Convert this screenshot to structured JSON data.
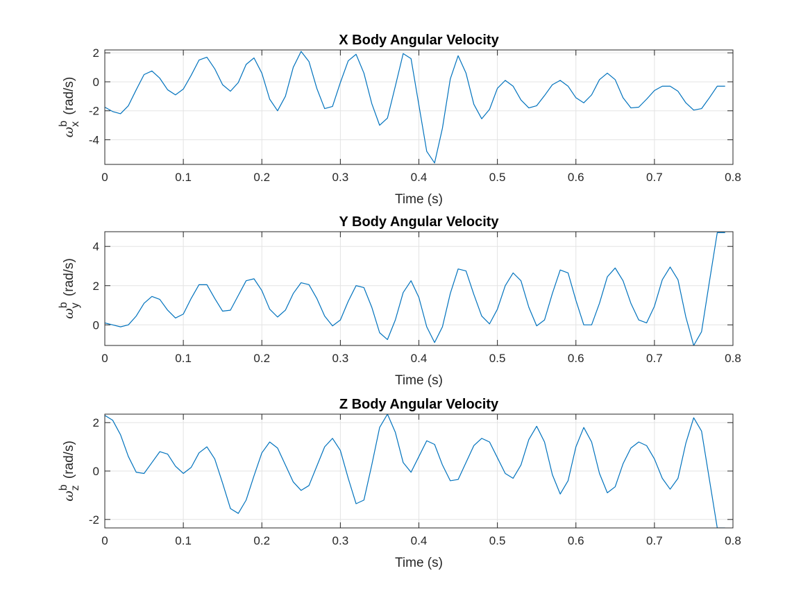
{
  "chart_data": [
    {
      "type": "line",
      "title": "X Body Angular Velocity",
      "xlabel": "Time (s)",
      "ylabel": {
        "symbol": "ω",
        "superscript": "b",
        "subscript": "x",
        "unit": "(rad/s)"
      },
      "xlim": [
        0,
        0.8
      ],
      "ylim": [
        -5.7,
        2.2
      ],
      "xticks": [
        0,
        0.1,
        0.2,
        0.3,
        0.4,
        0.5,
        0.6,
        0.7,
        0.8
      ],
      "xtick_labels": [
        "0",
        "0.1",
        "0.2",
        "0.3",
        "0.4",
        "0.5",
        "0.6",
        "0.7",
        "0.8"
      ],
      "yticks": [
        -4,
        -2,
        0,
        2
      ],
      "ytick_labels": [
        "-4",
        "-2",
        "0",
        "2"
      ],
      "grid": true,
      "color": "#0072bd",
      "series": [
        {
          "x": [
            0,
            0.01,
            0.02,
            0.03,
            0.04,
            0.05,
            0.06,
            0.07,
            0.08,
            0.09,
            0.1,
            0.11,
            0.12,
            0.13,
            0.14,
            0.15,
            0.16,
            0.17,
            0.18,
            0.19,
            0.2,
            0.21,
            0.22,
            0.23,
            0.24,
            0.25,
            0.26,
            0.27,
            0.28,
            0.29,
            0.3,
            0.31,
            0.32,
            0.33,
            0.34,
            0.35,
            0.36,
            0.37,
            0.38,
            0.39,
            0.4,
            0.41,
            0.42,
            0.43,
            0.44,
            0.45,
            0.46,
            0.47,
            0.48,
            0.49,
            0.5,
            0.51,
            0.52,
            0.53,
            0.54,
            0.55,
            0.56,
            0.57,
            0.58,
            0.59,
            0.6,
            0.61,
            0.62,
            0.63,
            0.64,
            0.65,
            0.66,
            0.67,
            0.68,
            0.69,
            0.7,
            0.71,
            0.72,
            0.73,
            0.74,
            0.75,
            0.76,
            0.77,
            0.78,
            0.79
          ],
          "y": [
            -1.75,
            -2.05,
            -2.2,
            -1.65,
            -0.55,
            0.5,
            0.75,
            0.25,
            -0.55,
            -0.9,
            -0.5,
            0.45,
            1.5,
            1.7,
            0.9,
            -0.2,
            -0.65,
            -0.05,
            1.2,
            1.65,
            0.6,
            -1.2,
            -2.0,
            -1.0,
            1.0,
            2.1,
            1.4,
            -0.45,
            -1.85,
            -1.7,
            -0.05,
            1.45,
            1.9,
            0.6,
            -1.5,
            -3.0,
            -2.5,
            -0.3,
            1.95,
            1.6,
            -1.6,
            -4.8,
            -5.6,
            -3.2,
            0.2,
            1.8,
            0.6,
            -1.55,
            -2.55,
            -1.9,
            -0.45,
            0.1,
            -0.3,
            -1.25,
            -1.8,
            -1.65,
            -0.95,
            -0.2,
            0.1,
            -0.3,
            -1.1,
            -1.45,
            -0.9,
            0.15,
            0.6,
            0.15,
            -1.1,
            -1.8,
            -1.75,
            -1.2,
            -0.6,
            -0.3,
            -0.3,
            -0.65,
            -1.45,
            -1.95,
            -1.85,
            -1.1,
            -0.3,
            -0.3
          ]
        }
      ]
    },
    {
      "type": "line",
      "title": "Y Body Angular Velocity",
      "xlabel": "Time (s)",
      "ylabel": {
        "symbol": "ω",
        "superscript": "b",
        "subscript": "y",
        "unit": "(rad/s)"
      },
      "xlim": [
        0,
        0.8
      ],
      "ylim": [
        -1.05,
        4.75
      ],
      "xticks": [
        0,
        0.1,
        0.2,
        0.3,
        0.4,
        0.5,
        0.6,
        0.7,
        0.8
      ],
      "xtick_labels": [
        "0",
        "0.1",
        "0.2",
        "0.3",
        "0.4",
        "0.5",
        "0.6",
        "0.7",
        "0.8"
      ],
      "yticks": [
        0,
        2,
        4
      ],
      "ytick_labels": [
        "0",
        "2",
        "4"
      ],
      "grid": true,
      "color": "#0072bd",
      "series": [
        {
          "x": [
            0,
            0.01,
            0.02,
            0.03,
            0.04,
            0.05,
            0.06,
            0.07,
            0.08,
            0.09,
            0.1,
            0.11,
            0.12,
            0.13,
            0.14,
            0.15,
            0.16,
            0.17,
            0.18,
            0.19,
            0.2,
            0.21,
            0.22,
            0.23,
            0.24,
            0.25,
            0.26,
            0.27,
            0.28,
            0.29,
            0.3,
            0.31,
            0.32,
            0.33,
            0.34,
            0.35,
            0.36,
            0.37,
            0.38,
            0.39,
            0.4,
            0.41,
            0.42,
            0.43,
            0.44,
            0.45,
            0.46,
            0.47,
            0.48,
            0.49,
            0.5,
            0.51,
            0.52,
            0.53,
            0.54,
            0.55,
            0.56,
            0.57,
            0.58,
            0.59,
            0.6,
            0.61,
            0.62,
            0.63,
            0.64,
            0.65,
            0.66,
            0.67,
            0.68,
            0.69,
            0.7,
            0.71,
            0.72,
            0.73,
            0.74,
            0.75,
            0.76,
            0.77,
            0.78,
            0.79
          ],
          "y": [
            0.1,
            0.0,
            -0.1,
            0.0,
            0.45,
            1.1,
            1.45,
            1.3,
            0.75,
            0.35,
            0.55,
            1.35,
            2.05,
            2.05,
            1.35,
            0.7,
            0.75,
            1.5,
            2.25,
            2.35,
            1.75,
            0.8,
            0.4,
            0.75,
            1.6,
            2.15,
            2.05,
            1.35,
            0.45,
            -0.05,
            0.25,
            1.2,
            2.0,
            1.9,
            0.9,
            -0.4,
            -0.75,
            0.25,
            1.65,
            2.25,
            1.4,
            -0.1,
            -0.9,
            -0.1,
            1.6,
            2.85,
            2.75,
            1.55,
            0.45,
            0.05,
            0.8,
            2.0,
            2.65,
            2.25,
            0.9,
            -0.05,
            0.25,
            1.6,
            2.8,
            2.65,
            1.25,
            0.0,
            0.0,
            1.1,
            2.45,
            2.9,
            2.25,
            1.1,
            0.25,
            0.1,
            0.95,
            2.3,
            2.95,
            2.3,
            0.4,
            -1.05,
            -0.35,
            2.2,
            4.7,
            4.7
          ]
        }
      ]
    },
    {
      "type": "line",
      "title": "Z Body Angular Velocity",
      "xlabel": "Time (s)",
      "ylabel": {
        "symbol": "ω",
        "superscript": "b",
        "subscript": "z",
        "unit": "(rad/s)"
      },
      "xlim": [
        0,
        0.8
      ],
      "ylim": [
        -2.35,
        2.35
      ],
      "xticks": [
        0,
        0.1,
        0.2,
        0.3,
        0.4,
        0.5,
        0.6,
        0.7,
        0.8
      ],
      "xtick_labels": [
        "0",
        "0.1",
        "0.2",
        "0.3",
        "0.4",
        "0.5",
        "0.6",
        "0.7",
        "0.8"
      ],
      "yticks": [
        -2,
        0,
        2
      ],
      "ytick_labels": [
        "-2",
        "0",
        "2"
      ],
      "grid": true,
      "color": "#0072bd",
      "series": [
        {
          "x": [
            0,
            0.01,
            0.02,
            0.03,
            0.04,
            0.05,
            0.06,
            0.07,
            0.08,
            0.09,
            0.1,
            0.11,
            0.12,
            0.13,
            0.14,
            0.15,
            0.16,
            0.17,
            0.18,
            0.19,
            0.2,
            0.21,
            0.22,
            0.23,
            0.24,
            0.25,
            0.26,
            0.27,
            0.28,
            0.29,
            0.3,
            0.31,
            0.32,
            0.33,
            0.34,
            0.35,
            0.36,
            0.37,
            0.38,
            0.39,
            0.4,
            0.41,
            0.42,
            0.43,
            0.44,
            0.45,
            0.46,
            0.47,
            0.48,
            0.49,
            0.5,
            0.51,
            0.52,
            0.53,
            0.54,
            0.55,
            0.56,
            0.57,
            0.58,
            0.59,
            0.6,
            0.61,
            0.62,
            0.63,
            0.64,
            0.65,
            0.66,
            0.67,
            0.68,
            0.69,
            0.7,
            0.71,
            0.72,
            0.73,
            0.74,
            0.75,
            0.76,
            0.77,
            0.78,
            0.79
          ],
          "y": [
            2.3,
            2.1,
            1.5,
            0.6,
            -0.05,
            -0.1,
            0.35,
            0.8,
            0.7,
            0.2,
            -0.1,
            0.15,
            0.75,
            1.0,
            0.5,
            -0.5,
            -1.55,
            -1.75,
            -1.2,
            -0.2,
            0.75,
            1.2,
            0.95,
            0.25,
            -0.45,
            -0.8,
            -0.6,
            0.2,
            1.0,
            1.35,
            0.85,
            -0.3,
            -1.35,
            -1.2,
            0.25,
            1.8,
            2.35,
            1.6,
            0.35,
            -0.05,
            0.6,
            1.25,
            1.1,
            0.25,
            -0.4,
            -0.35,
            0.35,
            1.05,
            1.35,
            1.2,
            0.55,
            -0.1,
            -0.3,
            0.25,
            1.3,
            1.85,
            1.2,
            -0.15,
            -0.95,
            -0.4,
            1.0,
            1.8,
            1.2,
            -0.1,
            -0.9,
            -0.65,
            0.3,
            0.95,
            1.2,
            1.05,
            0.5,
            -0.3,
            -0.75,
            -0.3,
            1.15,
            2.2,
            1.65,
            -0.35,
            -2.35,
            -2.35
          ]
        }
      ]
    }
  ]
}
